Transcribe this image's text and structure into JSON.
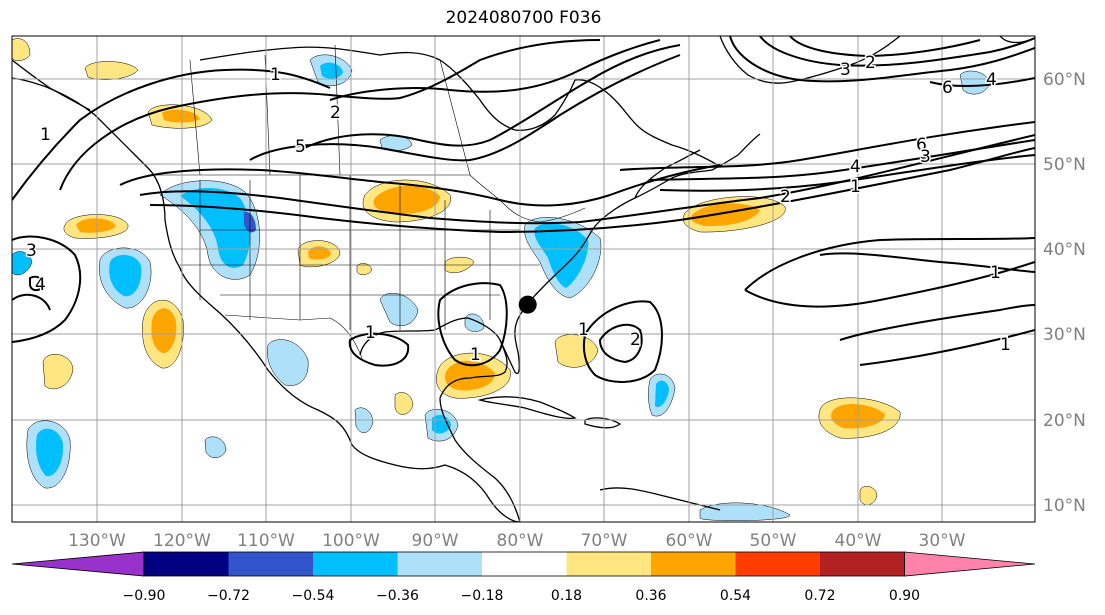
{
  "title": "2024080700 F036",
  "map": {
    "projection": "PlateCarree",
    "extent": {
      "lon_min": -140,
      "lon_max": -19,
      "lat_min": 8,
      "lat_max": 65
    },
    "lon_labels": [
      "130°W",
      "120°W",
      "110°W",
      "100°W",
      "90°W",
      "80°W",
      "70°W",
      "60°W",
      "50°W",
      "40°W",
      "30°W"
    ],
    "lat_labels": [
      "10°N",
      "20°N",
      "30°N",
      "40°N",
      "50°N",
      "60°N"
    ],
    "grid_color": "#a0a0a0",
    "marker": {
      "name": "storm-center",
      "lon": -79,
      "lat": 33.5,
      "color": "#000000"
    }
  },
  "contour_labels": [
    {
      "text": "1"
    },
    {
      "text": "2"
    },
    {
      "text": "5"
    },
    {
      "text": "1"
    },
    {
      "text": "3"
    },
    {
      "text": "4"
    },
    {
      "text": "1"
    },
    {
      "text": "1"
    },
    {
      "text": "1"
    },
    {
      "text": "2"
    },
    {
      "text": "3"
    },
    {
      "text": "2"
    },
    {
      "text": "6"
    },
    {
      "text": "4"
    },
    {
      "text": "6"
    },
    {
      "text": "4"
    },
    {
      "text": "3"
    },
    {
      "text": "2"
    },
    {
      "text": "1"
    },
    {
      "text": "1"
    },
    {
      "text": "1"
    }
  ],
  "colorbar": {
    "ticks": [
      "−0.90",
      "−0.72",
      "−0.54",
      "−0.36",
      "−0.18",
      "0.18",
      "0.36",
      "0.54",
      "0.72",
      "0.90"
    ],
    "colors": [
      "#9932cc",
      "#000080",
      "#3355cc",
      "#00bfff",
      "#aee0fa",
      "#ffffff",
      "#ffe680",
      "#ffa500",
      "#ff3d00",
      "#b22222",
      "#ff82ab"
    ]
  }
}
